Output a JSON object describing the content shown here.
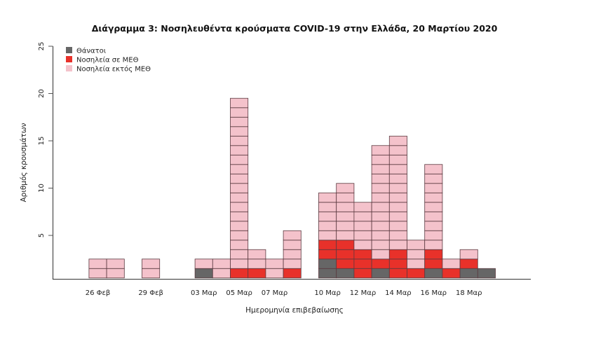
{
  "chart_data": {
    "type": "bar",
    "stacked": true,
    "style": "unit-boxes",
    "title": "Διάγραμμα 3: Νοσηλευθέντα κρούσματα COVID-19 στην Ελλάδα, 20 Μαρτίου 2020",
    "xlabel": "Ημερομηνία επιβεβαίωσης",
    "ylabel": "Αριθμός κρουσμάτων",
    "ylim": [
      0,
      25
    ],
    "yticks": [
      5,
      10,
      15,
      20,
      25
    ],
    "grid": false,
    "legend_position": "top-left",
    "categories": [
      "26 Φεβ",
      "27 Φεβ",
      "28 Φεβ",
      "29 Φεβ",
      "01 Μαρ",
      "02 Μαρ",
      "03 Μαρ",
      "04 Μαρ",
      "05 Μαρ",
      "06 Μαρ",
      "07 Μαρ",
      "08 Μαρ",
      "09 Μαρ",
      "10 Μαρ",
      "11 Μαρ",
      "12 Μαρ",
      "13 Μαρ",
      "14 Μαρ",
      "15 Μαρ",
      "16 Μαρ",
      "17 Μαρ",
      "18 Μαρ",
      "19 Μαρ"
    ],
    "xtick_labels": [
      {
        "category": "26 Φεβ",
        "label": "26 Φεβ"
      },
      {
        "category": "29 Φεβ",
        "label": "29 Φεβ"
      },
      {
        "category": "03 Μαρ",
        "label": "03 Μαρ"
      },
      {
        "category": "05 Μαρ",
        "label": "05 Μαρ"
      },
      {
        "category": "07 Μαρ",
        "label": "07 Μαρ"
      },
      {
        "category": "10 Μαρ",
        "label": "10 Μαρ"
      },
      {
        "category": "12 Μαρ",
        "label": "12 Μαρ"
      },
      {
        "category": "14 Μαρ",
        "label": "14 Μαρ"
      },
      {
        "category": "16 Μαρ",
        "label": "16 Μαρ"
      },
      {
        "category": "18 Μαρ",
        "label": "18 Μαρ"
      }
    ],
    "series": [
      {
        "name": "Θάνατοι",
        "color": "#666666",
        "values": [
          0,
          0,
          0,
          0,
          0,
          0,
          1,
          0,
          0,
          0,
          0,
          0,
          0,
          2,
          1,
          0,
          1,
          0,
          0,
          1,
          0,
          1,
          1
        ]
      },
      {
        "name": "Νοσηλεία σε ΜΕΘ",
        "color": "#e8312a",
        "values": [
          0,
          0,
          0,
          0,
          0,
          0,
          0,
          0,
          1,
          1,
          0,
          1,
          0,
          2,
          3,
          3,
          1,
          3,
          1,
          2,
          1,
          1,
          0
        ]
      },
      {
        "name": "Νοσηλεία εκτός ΜΕΘ",
        "color": "#f4c2cb",
        "values": [
          2,
          2,
          0,
          2,
          0,
          0,
          1,
          2,
          18,
          2,
          2,
          4,
          0,
          5,
          6,
          5,
          12,
          12,
          3,
          9,
          1,
          1,
          0
        ]
      }
    ]
  }
}
